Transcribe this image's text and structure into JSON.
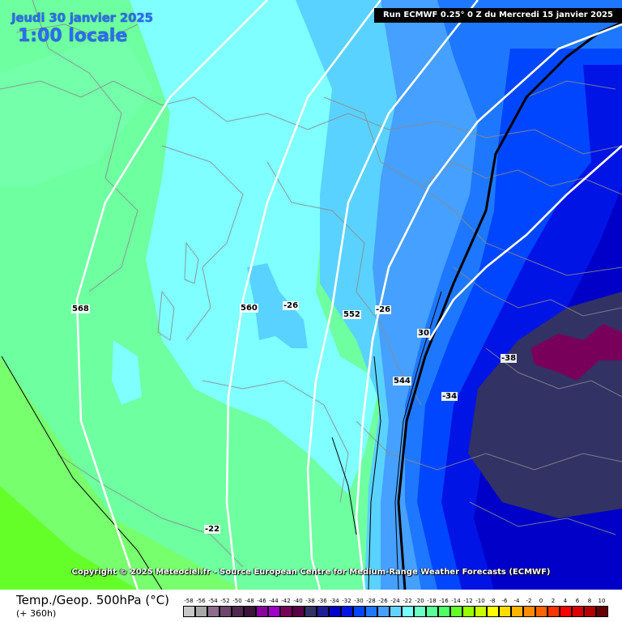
{
  "header": {
    "date_line": "Jeudi 30 janvier 2025",
    "time_line": "1:00 locale",
    "run_banner": "Run ECMWF 0.25° 0 Z du Mercredi 15 janvier 2025"
  },
  "copyright": "Copyright © 2025 Meteociel.fr - Source European Centre for Medium-Range Weather Forecasts (ECMWF)",
  "footer": {
    "title": "Temp./Geop. 500hPa (°C)",
    "lead_time": "(+ 360h)"
  },
  "labels": {
    "geo_568": "568",
    "geo_560": "560",
    "geo_552": "552",
    "geo_544": "544",
    "temp_m26_a": "-26",
    "temp_m26_b": "-26",
    "temp_m30": "30",
    "temp_m34": "-34",
    "temp_m38": "-38",
    "temp_m22": "-22"
  },
  "color_scale": [
    {
      "value": "-58",
      "color": "#c8c8c8"
    },
    {
      "value": "-56",
      "color": "#a8a8a8"
    },
    {
      "value": "-54",
      "color": "#8c6e8c"
    },
    {
      "value": "-52",
      "color": "#6e466e"
    },
    {
      "value": "-50",
      "color": "#502850"
    },
    {
      "value": "-48",
      "color": "#3c143c"
    },
    {
      "value": "-46",
      "color": "#8c00a0"
    },
    {
      "value": "-44",
      "color": "#a000c8"
    },
    {
      "value": "-42",
      "color": "#78005a"
    },
    {
      "value": "-40",
      "color": "#5a0046"
    },
    {
      "value": "-38",
      "color": "#323264"
    },
    {
      "value": "-36",
      "color": "#1e1e96"
    },
    {
      "value": "-34",
      "color": "#0000c8"
    },
    {
      "value": "-32",
      "color": "#0014e6"
    },
    {
      "value": "-30",
      "color": "#0046ff"
    },
    {
      "value": "-28",
      "color": "#1e78ff"
    },
    {
      "value": "-26",
      "color": "#46a0ff"
    },
    {
      "value": "-24",
      "color": "#64d2ff"
    },
    {
      "value": "-22",
      "color": "#78ffff"
    },
    {
      "value": "-20",
      "color": "#6effc8"
    },
    {
      "value": "-18",
      "color": "#5aff96"
    },
    {
      "value": "-16",
      "color": "#50ff64"
    },
    {
      "value": "-14",
      "color": "#64ff28"
    },
    {
      "value": "-12",
      "color": "#96ff00"
    },
    {
      "value": "-10",
      "color": "#c8ff00"
    },
    {
      "value": "-8",
      "color": "#ffff00"
    },
    {
      "value": "-6",
      "color": "#ffdc00"
    },
    {
      "value": "-4",
      "color": "#ffb400"
    },
    {
      "value": "-2",
      "color": "#ff8c00"
    },
    {
      "value": "0",
      "color": "#ff6400"
    },
    {
      "value": "2",
      "color": "#ff3200"
    },
    {
      "value": "4",
      "color": "#ff0000"
    },
    {
      "value": "6",
      "color": "#dc0000"
    },
    {
      "value": "8",
      "color": "#b40000"
    },
    {
      "value": "10",
      "color": "#640000"
    }
  ]
}
